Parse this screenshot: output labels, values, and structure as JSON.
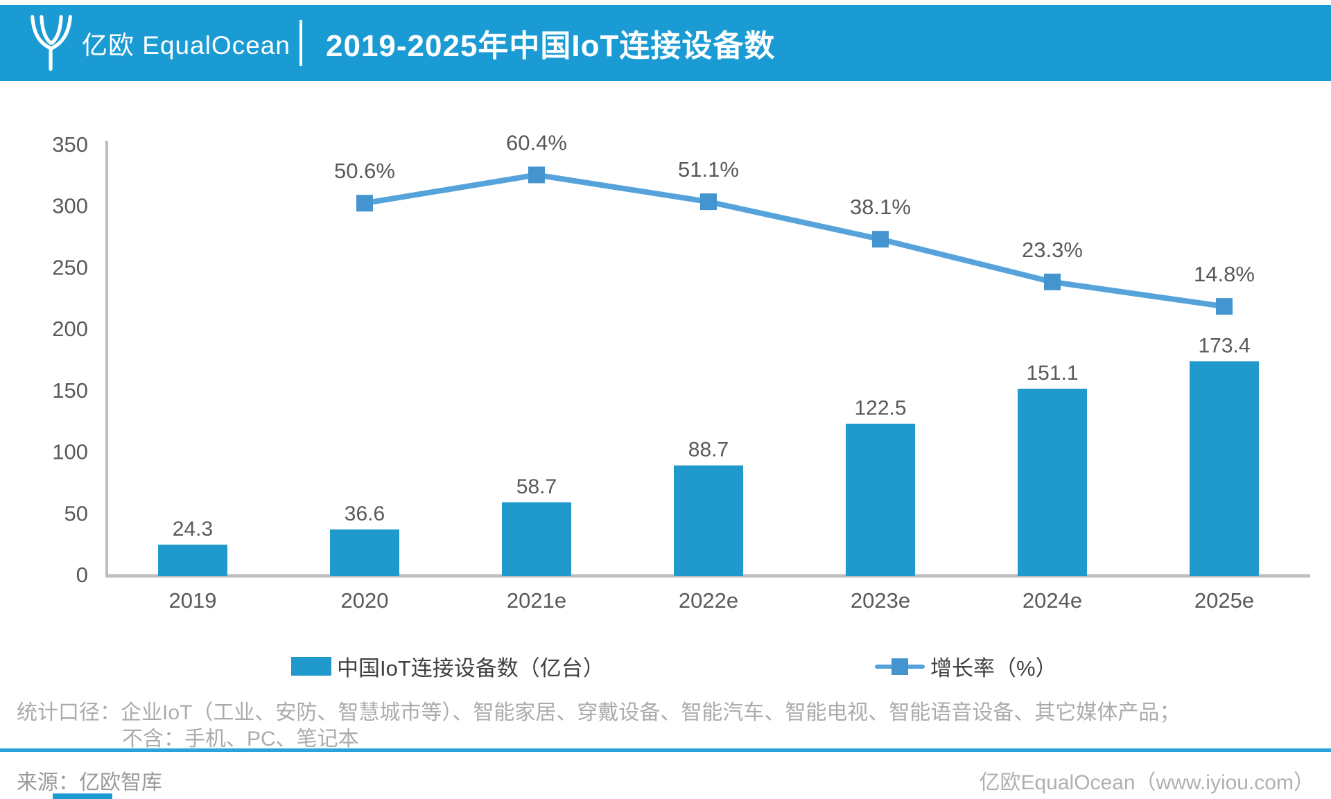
{
  "header": {
    "logo_text": "亿欧 EqualOcean",
    "title": "2019-2025年中国IoT连接设备数"
  },
  "chart_data": {
    "type": "bar",
    "subtype": "bar+line combo",
    "title": "2019-2025年中国IoT连接设备数",
    "categories": [
      "2019",
      "2020",
      "2021e",
      "2022e",
      "2023e",
      "2024e",
      "2025e"
    ],
    "series": [
      {
        "name": "中国IoT连接设备数（亿台）",
        "type": "bar",
        "values": [
          24.3,
          36.6,
          58.7,
          88.7,
          122.5,
          151.1,
          173.4
        ],
        "labels": [
          "24.3",
          "36.6",
          "58.7",
          "88.7",
          "122.5",
          "151.1",
          "173.4"
        ]
      },
      {
        "name": "增长率（%）",
        "type": "line",
        "values": [
          null,
          50.6,
          60.4,
          51.1,
          38.1,
          23.3,
          14.8
        ],
        "labels": [
          "",
          "50.6%",
          "60.4%",
          "51.1%",
          "38.1%",
          "23.3%",
          "14.8%"
        ]
      }
    ],
    "xlabel": "",
    "ylabel": "",
    "ylim": [
      0,
      350
    ],
    "y_ticks": [
      0,
      50,
      100,
      150,
      200,
      250,
      300,
      350
    ],
    "grid": false,
    "legend_position": "bottom"
  },
  "legend": {
    "bar_label": "中国IoT连接设备数（亿台）",
    "line_label": "增长率（%）"
  },
  "footnote": {
    "line1": "统计口径：企业IoT（工业、安防、智慧城市等）、智能家居、穿戴设备、智能汽车、智能电视、智能语音设备、其它媒体产品；",
    "line2": "不含：手机、PC、笔记本"
  },
  "source": {
    "left": "来源：亿欧智库",
    "right": "亿欧EqualOcean（www.iyiou.com）"
  },
  "colors": {
    "header_bg": "#1b9bd4",
    "bar": "#209acc",
    "line": "#55a3da",
    "marker": "#4394cf",
    "axis": "#bfbfbf",
    "label": "#595959",
    "note": "#ababab",
    "divider": "#29a3d9"
  }
}
